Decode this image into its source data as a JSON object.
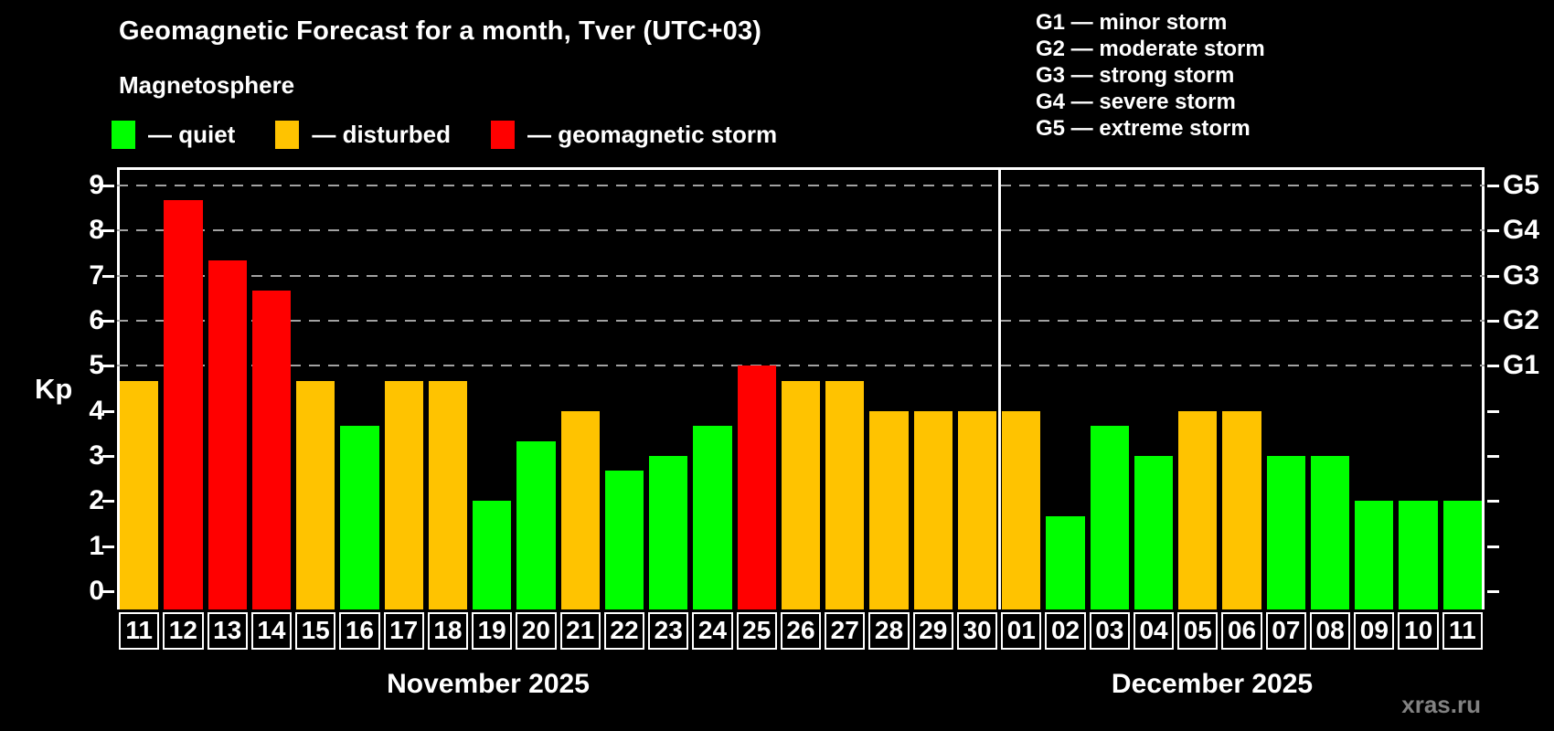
{
  "title": "Geomagnetic Forecast for a month, Tver (UTC+03)",
  "subtitle": "Magnetosphere",
  "legend": {
    "items": [
      {
        "swatch": "quiet",
        "label": "— quiet"
      },
      {
        "swatch": "disturbed",
        "label": "— disturbed"
      },
      {
        "swatch": "storm",
        "label": "— geomagnetic storm"
      }
    ]
  },
  "g_legend": [
    "G1 — minor storm",
    "G2 — moderate storm",
    "G3 — strong storm",
    "G4 — severe storm",
    "G5 — extreme storm"
  ],
  "watermark": "xras.ru",
  "colors": {
    "background": "#000000",
    "text": "#FFFFFF",
    "grid": "#A2A2A2",
    "watermark": "#828282",
    "status": {
      "quiet": "#00FF00",
      "disturbed": "#FFC300",
      "storm": "#FF0000"
    }
  },
  "chart_data": {
    "type": "bar",
    "title": "Geomagnetic Forecast for a month, Tver (UTC+03)",
    "ylabel": "Kp",
    "xlabel": "",
    "ylim": [
      -0.4,
      9.4
    ],
    "yticks": [
      0,
      1,
      2,
      3,
      4,
      5,
      6,
      7,
      8,
      9
    ],
    "gridlines_kp": [
      5,
      6,
      7,
      8,
      9
    ],
    "grid": "dashed, only at storm levels G1–G5",
    "legend_position": "top",
    "right_axis": [
      {
        "kp": 9,
        "label": "G5"
      },
      {
        "kp": 8,
        "label": "G4"
      },
      {
        "kp": 7,
        "label": "G3"
      },
      {
        "kp": 6,
        "label": "G2"
      },
      {
        "kp": 5,
        "label": "G1"
      }
    ],
    "months": [
      {
        "label": "November 2025",
        "days": 20
      },
      {
        "label": "December 2025",
        "days": 11
      }
    ],
    "bars": [
      {
        "day": "11",
        "kp": 4.67,
        "status": "disturbed"
      },
      {
        "day": "12",
        "kp": 8.67,
        "status": "storm"
      },
      {
        "day": "13",
        "kp": 7.33,
        "status": "storm"
      },
      {
        "day": "14",
        "kp": 6.67,
        "status": "storm"
      },
      {
        "day": "15",
        "kp": 4.67,
        "status": "disturbed"
      },
      {
        "day": "16",
        "kp": 3.67,
        "status": "quiet"
      },
      {
        "day": "17",
        "kp": 4.67,
        "status": "disturbed"
      },
      {
        "day": "18",
        "kp": 4.67,
        "status": "disturbed"
      },
      {
        "day": "19",
        "kp": 2.0,
        "status": "quiet"
      },
      {
        "day": "20",
        "kp": 3.33,
        "status": "quiet"
      },
      {
        "day": "21",
        "kp": 4.0,
        "status": "disturbed"
      },
      {
        "day": "22",
        "kp": 2.67,
        "status": "quiet"
      },
      {
        "day": "23",
        "kp": 3.0,
        "status": "quiet"
      },
      {
        "day": "24",
        "kp": 3.67,
        "status": "quiet"
      },
      {
        "day": "25",
        "kp": 5.0,
        "status": "storm"
      },
      {
        "day": "26",
        "kp": 4.67,
        "status": "disturbed"
      },
      {
        "day": "27",
        "kp": 4.67,
        "status": "disturbed"
      },
      {
        "day": "28",
        "kp": 4.0,
        "status": "disturbed"
      },
      {
        "day": "29",
        "kp": 4.0,
        "status": "disturbed"
      },
      {
        "day": "30",
        "kp": 4.0,
        "status": "disturbed"
      },
      {
        "day": "01",
        "kp": 4.0,
        "status": "disturbed"
      },
      {
        "day": "02",
        "kp": 1.67,
        "status": "quiet"
      },
      {
        "day": "03",
        "kp": 3.67,
        "status": "quiet"
      },
      {
        "day": "04",
        "kp": 3.0,
        "status": "quiet"
      },
      {
        "day": "05",
        "kp": 4.0,
        "status": "disturbed"
      },
      {
        "day": "06",
        "kp": 4.0,
        "status": "disturbed"
      },
      {
        "day": "07",
        "kp": 3.0,
        "status": "quiet"
      },
      {
        "day": "08",
        "kp": 3.0,
        "status": "quiet"
      },
      {
        "day": "09",
        "kp": 2.0,
        "status": "quiet"
      },
      {
        "day": "10",
        "kp": 2.0,
        "status": "quiet"
      },
      {
        "day": "11",
        "kp": 2.0,
        "status": "quiet"
      }
    ]
  }
}
